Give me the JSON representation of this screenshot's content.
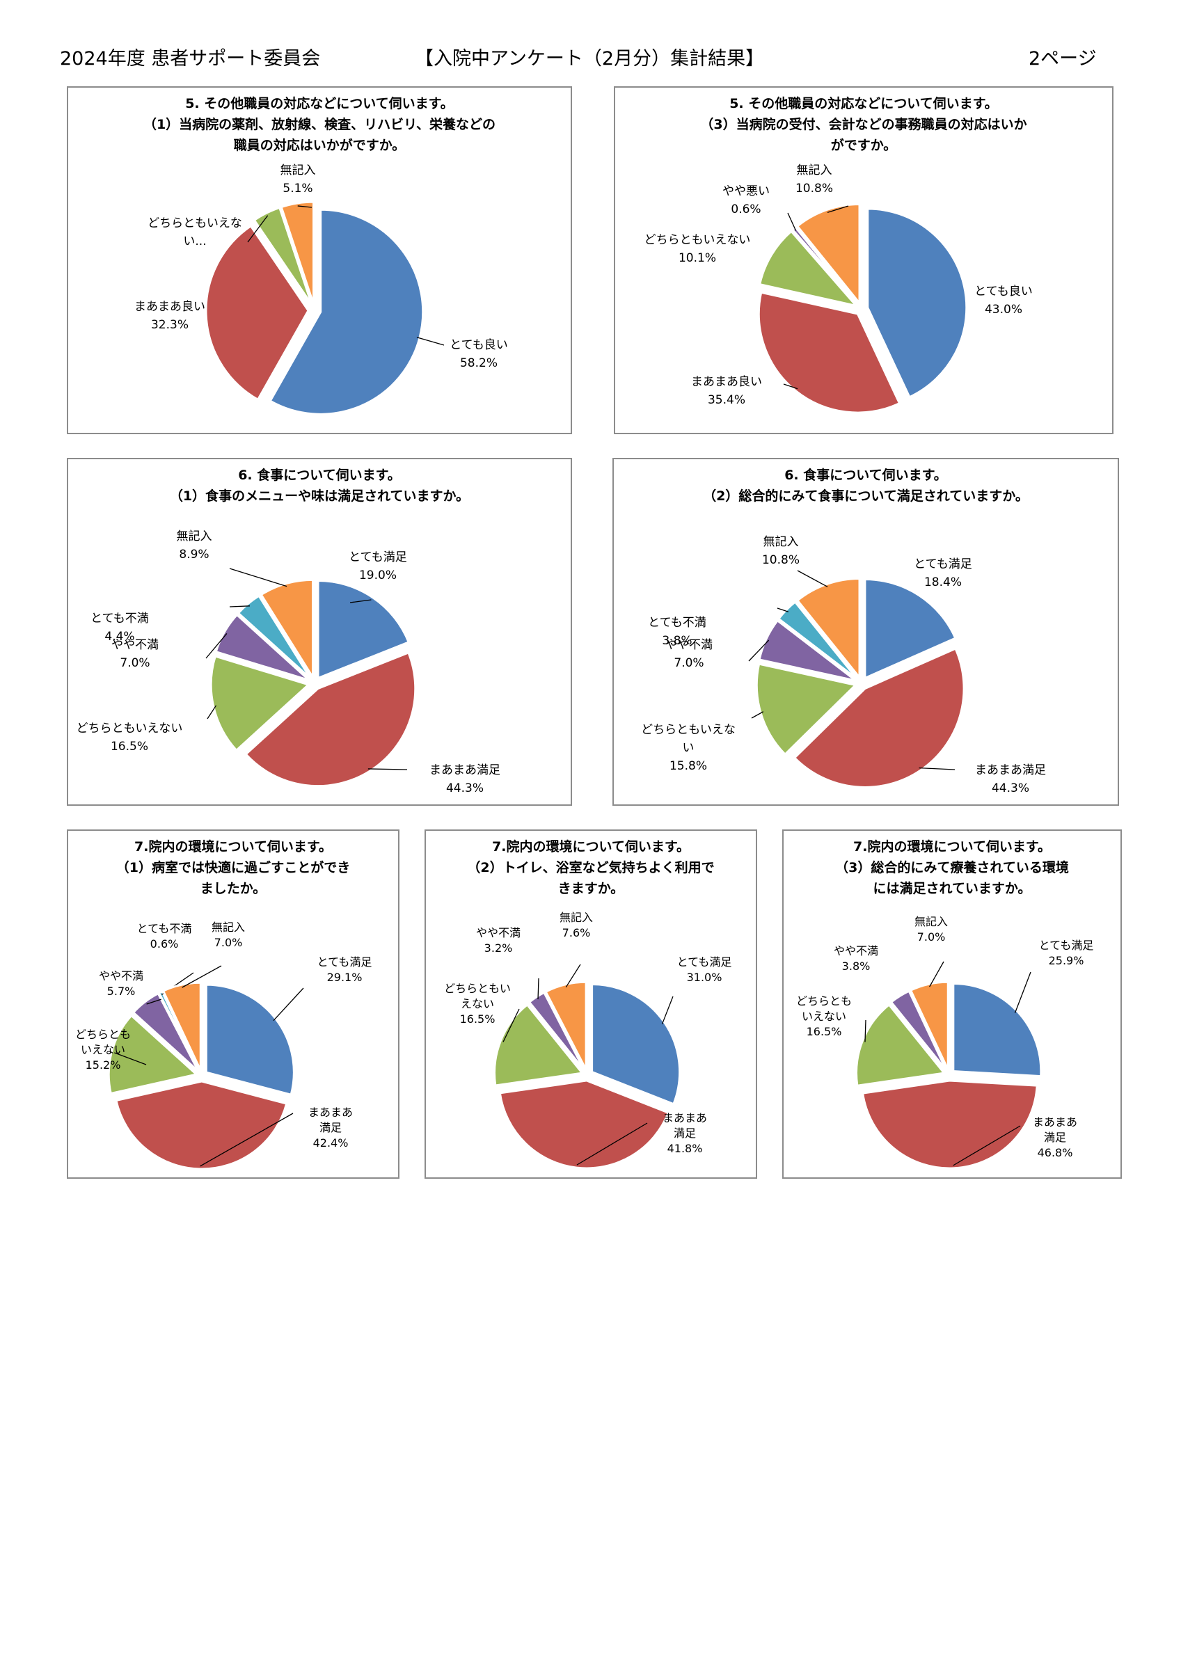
{
  "header": {
    "left": "2024年度 患者サポート委員会",
    "center": "【入院中アンケート（2月分）集計結果】",
    "right": "2ページ"
  },
  "colors": {
    "blue": "#4F81BD",
    "red": "#C0504D",
    "green": "#9BBB59",
    "purple": "#8064A2",
    "aqua": "#4BACC6",
    "orange": "#F79646"
  },
  "chart_data": [
    {
      "type": "pie",
      "title": [
        "5. その他職員の対応などについて伺います。",
        "（1）当病院の薬剤、放射線、検査、リハビリ、栄養などの",
        "職員の対応はいかがですか。"
      ],
      "slices": [
        {
          "label": "とても良い",
          "value": 58.2,
          "display": "58.2%",
          "color": "#4F81BD"
        },
        {
          "label": "まあまあ良い",
          "value": 32.3,
          "display": "32.3%",
          "color": "#C0504D"
        },
        {
          "label": "どちらともいえな\nい...",
          "value": 4.4,
          "display": "",
          "color": "#9BBB59"
        },
        {
          "label": "無記入",
          "value": 5.1,
          "display": "5.1%",
          "color": "#F79646"
        }
      ]
    },
    {
      "type": "pie",
      "title": [
        "5. その他職員の対応などについて伺います。",
        "（3）当病院の受付、会計などの事務職員の対応はいか",
        "がですか。"
      ],
      "slices": [
        {
          "label": "とても良い",
          "value": 43.0,
          "display": "43.0%",
          "color": "#4F81BD"
        },
        {
          "label": "まあまあ良い",
          "value": 35.4,
          "display": "35.4%",
          "color": "#C0504D"
        },
        {
          "label": "どちらともいえない",
          "value": 10.1,
          "display": "10.1%",
          "color": "#9BBB59"
        },
        {
          "label": "やや悪い",
          "value": 0.6,
          "display": "0.6%",
          "color": "#8064A2"
        },
        {
          "label": "無記入",
          "value": 10.8,
          "display": "10.8%",
          "color": "#F79646"
        }
      ]
    },
    {
      "type": "pie",
      "title": [
        "6. 食事について伺います。",
        "（1）食事のメニューや味は満足されていますか。"
      ],
      "slices": [
        {
          "label": "とても満足",
          "value": 19.0,
          "display": "19.0%",
          "color": "#4F81BD"
        },
        {
          "label": "まあまあ満足",
          "value": 44.3,
          "display": "44.3%",
          "color": "#C0504D"
        },
        {
          "label": "どちらともいえない",
          "value": 16.5,
          "display": "16.5%",
          "color": "#9BBB59"
        },
        {
          "label": "やや不満",
          "value": 7.0,
          "display": "7.0%",
          "color": "#8064A2"
        },
        {
          "label": "とても不満",
          "value": 4.4,
          "display": "4.4%",
          "color": "#4BACC6"
        },
        {
          "label": "無記入",
          "value": 8.9,
          "display": "8.9%",
          "color": "#F79646"
        }
      ]
    },
    {
      "type": "pie",
      "title": [
        "6. 食事について伺います。",
        "（2）総合的にみて食事について満足されていますか。"
      ],
      "slices": [
        {
          "label": "とても満足",
          "value": 18.4,
          "display": "18.4%",
          "color": "#4F81BD"
        },
        {
          "label": "まあまあ満足",
          "value": 44.3,
          "display": "44.3%",
          "color": "#C0504D"
        },
        {
          "label": "どちらともいえな\nい",
          "value": 15.8,
          "display": "15.8%",
          "color": "#9BBB59"
        },
        {
          "label": "やや不満",
          "value": 7.0,
          "display": "7.0%",
          "color": "#8064A2"
        },
        {
          "label": "とても不満",
          "value": 3.8,
          "display": "3.8%",
          "color": "#4BACC6"
        },
        {
          "label": "無記入",
          "value": 10.8,
          "display": "10.8%",
          "color": "#F79646"
        }
      ]
    },
    {
      "type": "pie",
      "title": [
        "7.院内の環境について伺います。",
        "（1）病室では快適に過ごすことができ",
        "ましたか。"
      ],
      "slices": [
        {
          "label": "とても満足",
          "value": 29.1,
          "display": "29.1%",
          "color": "#4F81BD"
        },
        {
          "label": "まあまあ\n満足",
          "value": 42.4,
          "display": "42.4%",
          "color": "#C0504D"
        },
        {
          "label": "どちらとも\nいえない",
          "value": 15.2,
          "display": "15.2%",
          "color": "#9BBB59"
        },
        {
          "label": "やや不満",
          "value": 5.7,
          "display": "5.7%",
          "color": "#8064A2"
        },
        {
          "label": "とても不満",
          "value": 0.6,
          "display": "0.6%",
          "color": "#4BACC6"
        },
        {
          "label": "無記入",
          "value": 7.0,
          "display": "7.0%",
          "color": "#F79646"
        }
      ]
    },
    {
      "type": "pie",
      "title": [
        "7.院内の環境について伺います。",
        "（2）トイレ、浴室など気持ちよく利用で",
        "きますか。"
      ],
      "slices": [
        {
          "label": "とても満足",
          "value": 31.0,
          "display": "31.0%",
          "color": "#4F81BD"
        },
        {
          "label": "まあまあ\n満足",
          "value": 41.8,
          "display": "41.8%",
          "color": "#C0504D"
        },
        {
          "label": "どちらともい\nえない",
          "value": 16.5,
          "display": "16.5%",
          "color": "#9BBB59"
        },
        {
          "label": "やや不満",
          "value": 3.2,
          "display": "3.2%",
          "color": "#8064A2"
        },
        {
          "label": "無記入",
          "value": 7.6,
          "display": "7.6%",
          "color": "#F79646"
        }
      ]
    },
    {
      "type": "pie",
      "title": [
        "7.院内の環境について伺います。",
        "（3）総合的にみて療養されている環境",
        "には満足されていますか。"
      ],
      "slices": [
        {
          "label": "とても満足",
          "value": 25.9,
          "display": "25.9%",
          "color": "#4F81BD"
        },
        {
          "label": "まあまあ\n満足",
          "value": 46.8,
          "display": "46.8%",
          "color": "#C0504D"
        },
        {
          "label": "どちらとも\nいえない",
          "value": 16.5,
          "display": "16.5%",
          "color": "#9BBB59"
        },
        {
          "label": "やや不満",
          "value": 3.8,
          "display": "3.8%",
          "color": "#8064A2"
        },
        {
          "label": "無記入",
          "value": 7.0,
          "display": "7.0%",
          "color": "#F79646"
        }
      ]
    }
  ]
}
